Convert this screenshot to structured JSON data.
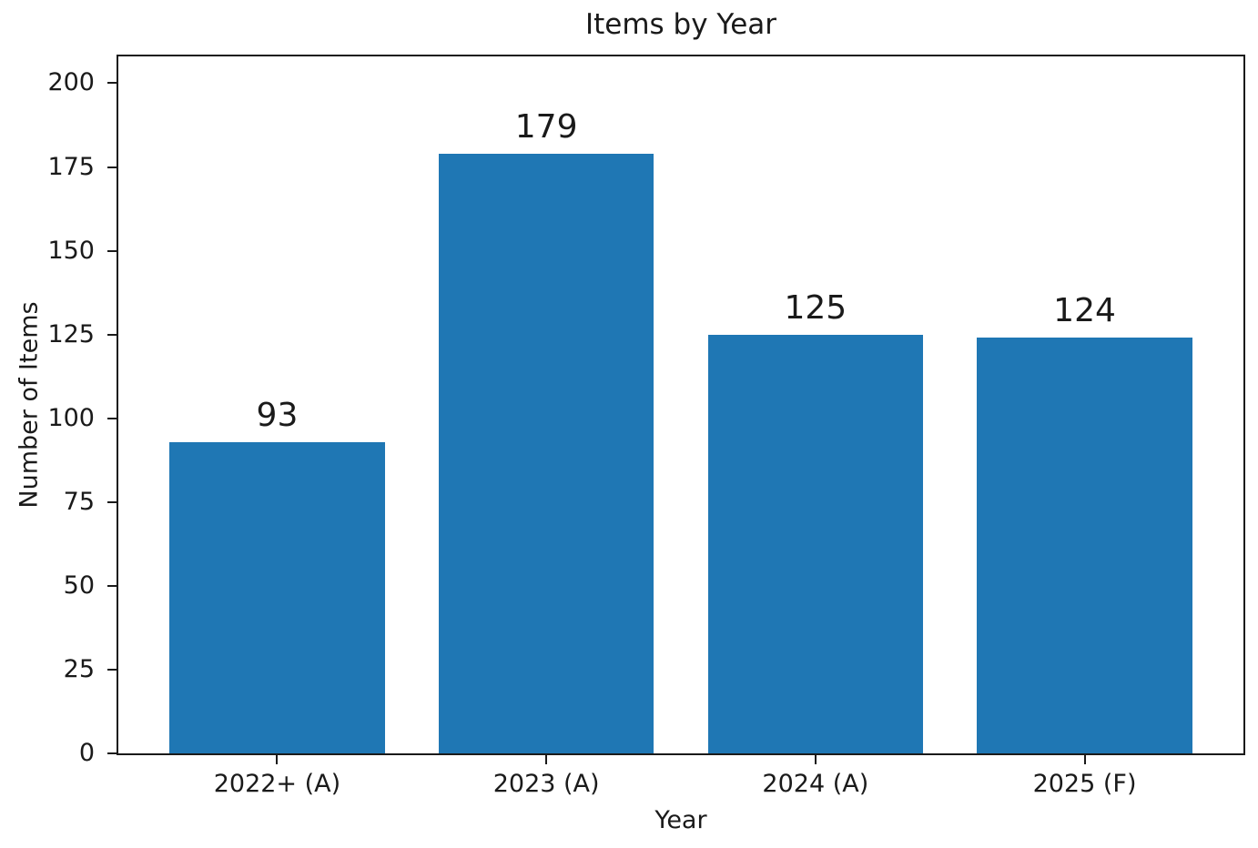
{
  "chart_data": {
    "type": "bar",
    "title": "Items by Year",
    "xlabel": "Year",
    "ylabel": "Number of Items",
    "categories": [
      "2022+ (A)",
      "2023 (A)",
      "2024 (A)",
      "2025 (F)"
    ],
    "values": [
      93,
      179,
      125,
      124
    ],
    "bar_value_labels": [
      "93",
      "179",
      "125",
      "124"
    ],
    "yticks": [
      0,
      25,
      50,
      75,
      100,
      125,
      150,
      175,
      200
    ],
    "ylim": [
      0,
      208
    ],
    "bar_width_fraction": 0.8,
    "bar_color": "#1f77b4",
    "axis_color": "#1a1a1a",
    "text_color": "#1a1a1a",
    "background": "#ffffff",
    "grid": false,
    "legend": "none"
  }
}
